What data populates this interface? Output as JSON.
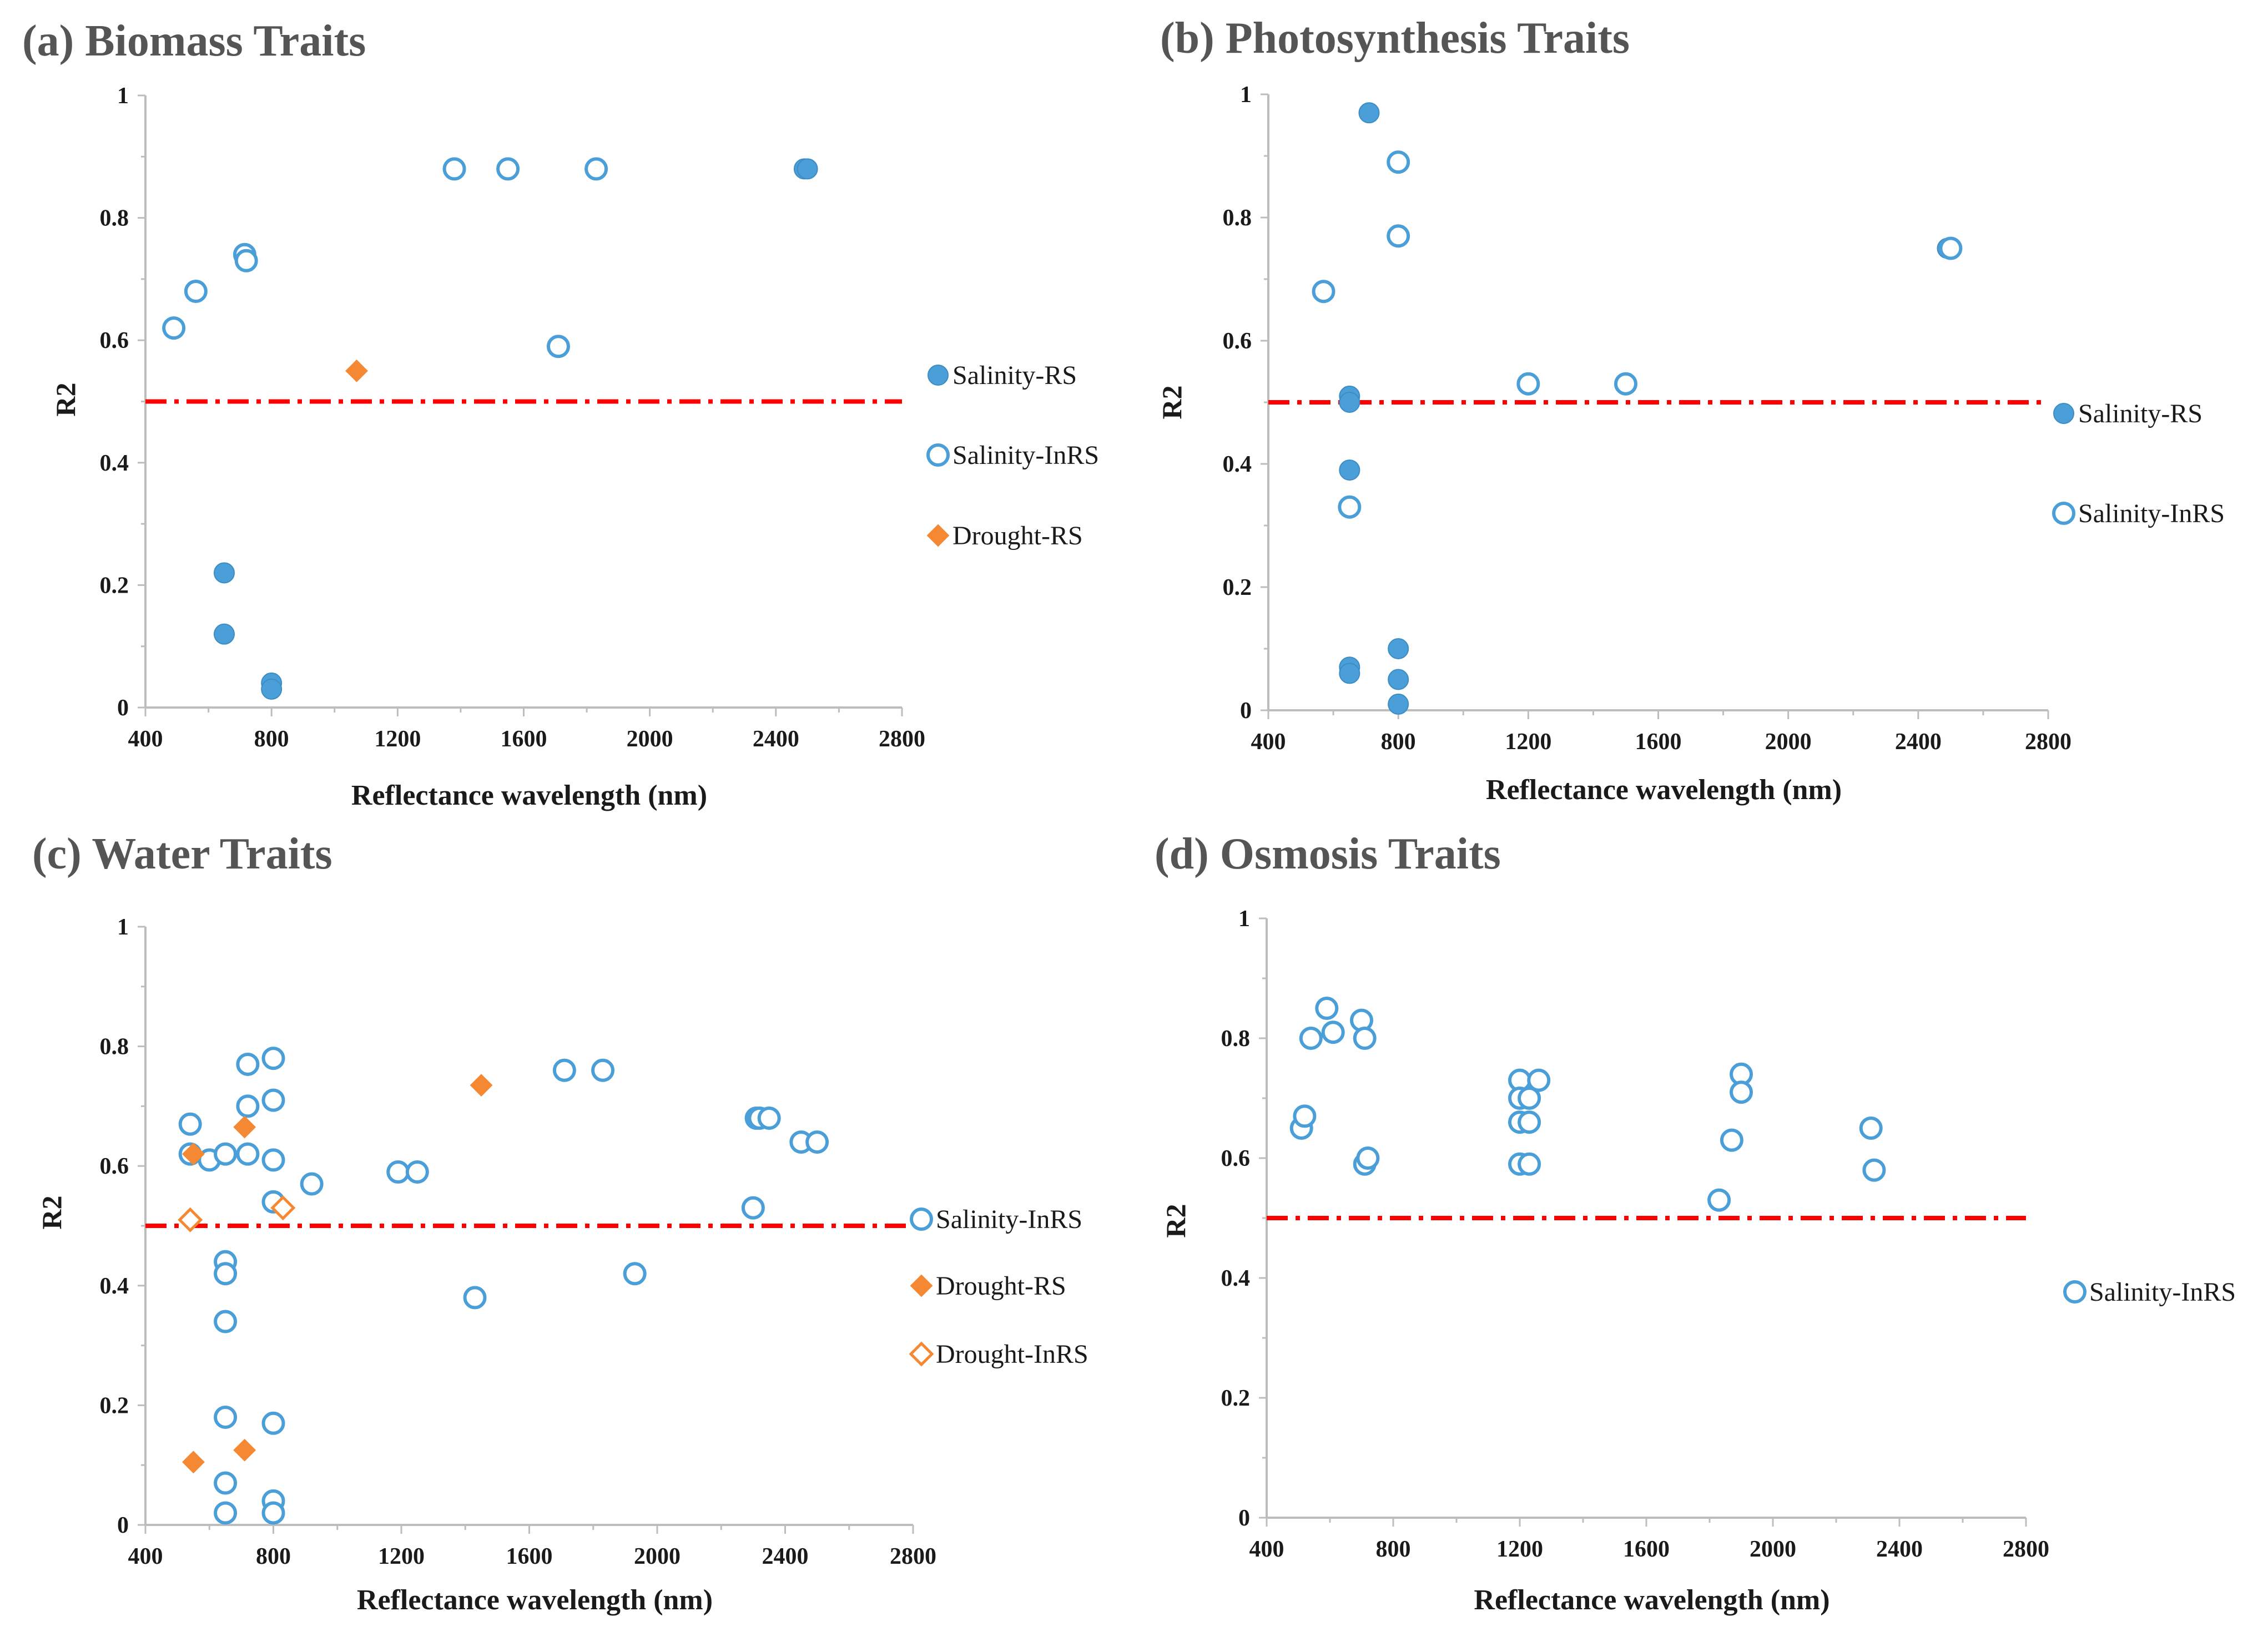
{
  "colors": {
    "blue": "#4a9fd8",
    "orange": "#f58833",
    "threshold": "#ff0000"
  },
  "chart_data": [
    {
      "type": "scatter",
      "title": "(a) Biomass Traits",
      "xlabel": "Reflectance wavelength (nm)",
      "ylabel": "R2",
      "xlim": [
        400,
        2800
      ],
      "ylim": [
        0,
        1
      ],
      "xticks": [
        "400",
        "800",
        "1200",
        "1600",
        "2000",
        "2400",
        "2800"
      ],
      "yticks": [
        "0",
        "0.2",
        "0.4",
        "0.6",
        "0.8",
        "1"
      ],
      "threshold": 0.5,
      "series": [
        {
          "name": "Salinity-RS",
          "marker": "circle",
          "filled": true,
          "color": "#4a9fd8",
          "points": [
            [
              650,
              0.22
            ],
            [
              650,
              0.12
            ],
            [
              800,
              0.04
            ],
            [
              800,
              0.03
            ],
            [
              2490,
              0.88
            ],
            [
              2500,
              0.88
            ]
          ]
        },
        {
          "name": "Salinity-InRS",
          "marker": "circle",
          "filled": false,
          "color": "#4a9fd8",
          "points": [
            [
              490,
              0.62
            ],
            [
              560,
              0.68
            ],
            [
              715,
              0.74
            ],
            [
              720,
              0.73
            ],
            [
              1380,
              0.88
            ],
            [
              1550,
              0.88
            ],
            [
              1710,
              0.59
            ],
            [
              1830,
              0.88
            ]
          ]
        },
        {
          "name": "Drought-RS",
          "marker": "diamond",
          "filled": true,
          "color": "#f58833",
          "points": [
            [
              1070,
              0.55
            ]
          ]
        }
      ]
    },
    {
      "type": "scatter",
      "title": "(b) Photosynthesis Traits",
      "xlabel": "Reflectance wavelength (nm)",
      "ylabel": "R2",
      "xlim": [
        400,
        2800
      ],
      "ylim": [
        0,
        1
      ],
      "xticks": [
        "400",
        "800",
        "1200",
        "1600",
        "2000",
        "2400",
        "2800"
      ],
      "yticks": [
        "0",
        "0.2",
        "0.4",
        "0.6",
        "0.8",
        "1"
      ],
      "threshold": 0.5,
      "series": [
        {
          "name": "Salinity-RS",
          "marker": "circle",
          "filled": true,
          "color": "#4a9fd8",
          "points": [
            [
              710,
              0.97
            ],
            [
              650,
              0.51
            ],
            [
              650,
              0.5
            ],
            [
              650,
              0.39
            ],
            [
              650,
              0.07
            ],
            [
              650,
              0.06
            ],
            [
              800,
              0.1
            ],
            [
              800,
              0.05
            ],
            [
              800,
              0.01
            ],
            [
              2490,
              0.75
            ]
          ]
        },
        {
          "name": "Salinity-InRS",
          "marker": "circle",
          "filled": false,
          "color": "#4a9fd8",
          "points": [
            [
              570,
              0.68
            ],
            [
              650,
              0.33
            ],
            [
              800,
              0.89
            ],
            [
              800,
              0.77
            ],
            [
              1200,
              0.53
            ],
            [
              1500,
              0.53
            ],
            [
              2500,
              0.75
            ]
          ]
        }
      ]
    },
    {
      "type": "scatter",
      "title": "(c) Water Traits",
      "xlabel": "Reflectance wavelength (nm)",
      "ylabel": "R2",
      "xlim": [
        400,
        2800
      ],
      "ylim": [
        0,
        1
      ],
      "xticks": [
        "400",
        "800",
        "1200",
        "1600",
        "2000",
        "2400",
        "2800"
      ],
      "yticks": [
        "0",
        "0.2",
        "0.4",
        "0.6",
        "0.8",
        "1"
      ],
      "threshold": 0.5,
      "series": [
        {
          "name": "Salinity-InRS",
          "marker": "circle",
          "filled": false,
          "color": "#4a9fd8",
          "points": [
            [
              540,
              0.67
            ],
            [
              540,
              0.62
            ],
            [
              600,
              0.61
            ],
            [
              650,
              0.62
            ],
            [
              650,
              0.44
            ],
            [
              650,
              0.42
            ],
            [
              650,
              0.34
            ],
            [
              650,
              0.18
            ],
            [
              650,
              0.07
            ],
            [
              650,
              0.02
            ],
            [
              720,
              0.77
            ],
            [
              720,
              0.7
            ],
            [
              720,
              0.62
            ],
            [
              800,
              0.78
            ],
            [
              800,
              0.71
            ],
            [
              800,
              0.61
            ],
            [
              800,
              0.54
            ],
            [
              800,
              0.17
            ],
            [
              800,
              0.04
            ],
            [
              800,
              0.02
            ],
            [
              920,
              0.57
            ],
            [
              1190,
              0.59
            ],
            [
              1250,
              0.59
            ],
            [
              1430,
              0.38
            ],
            [
              1710,
              0.76
            ],
            [
              1830,
              0.76
            ],
            [
              1930,
              0.42
            ],
            [
              2300,
              0.53
            ],
            [
              2310,
              0.68
            ],
            [
              2320,
              0.68
            ],
            [
              2350,
              0.68
            ],
            [
              2450,
              0.64
            ],
            [
              2500,
              0.64
            ]
          ]
        },
        {
          "name": "Drought-RS",
          "marker": "diamond",
          "filled": true,
          "color": "#f58833",
          "points": [
            [
              550,
              0.62
            ],
            [
              550,
              0.105
            ],
            [
              710,
              0.665
            ],
            [
              710,
              0.125
            ],
            [
              1450,
              0.735
            ]
          ]
        },
        {
          "name": "Drought-InRS",
          "marker": "diamond",
          "filled": false,
          "color": "#f58833",
          "points": [
            [
              540,
              0.51
            ],
            [
              830,
              0.53
            ]
          ]
        }
      ]
    },
    {
      "type": "scatter",
      "title": "(d) Osmosis Traits",
      "xlabel": "Reflectance wavelength (nm)",
      "ylabel": "R2",
      "xlim": [
        400,
        2800
      ],
      "ylim": [
        0,
        1
      ],
      "xticks": [
        "400",
        "800",
        "1200",
        "1600",
        "2000",
        "2400",
        "2800"
      ],
      "yticks": [
        "0",
        "0.2",
        "0.4",
        "0.6",
        "0.8",
        "1"
      ],
      "threshold": 0.5,
      "series": [
        {
          "name": "Salinity-InRS",
          "marker": "circle",
          "filled": false,
          "color": "#4a9fd8",
          "points": [
            [
              510,
              0.65
            ],
            [
              520,
              0.67
            ],
            [
              540,
              0.8
            ],
            [
              590,
              0.85
            ],
            [
              610,
              0.81
            ],
            [
              700,
              0.83
            ],
            [
              710,
              0.8
            ],
            [
              710,
              0.59
            ],
            [
              720,
              0.6
            ],
            [
              1200,
              0.73
            ],
            [
              1200,
              0.7
            ],
            [
              1200,
              0.66
            ],
            [
              1200,
              0.59
            ],
            [
              1230,
              0.7
            ],
            [
              1230,
              0.66
            ],
            [
              1230,
              0.59
            ],
            [
              1260,
              0.73
            ],
            [
              1830,
              0.53
            ],
            [
              1870,
              0.63
            ],
            [
              1900,
              0.74
            ],
            [
              1900,
              0.71
            ],
            [
              2310,
              0.65
            ],
            [
              2320,
              0.58
            ]
          ]
        }
      ]
    }
  ]
}
